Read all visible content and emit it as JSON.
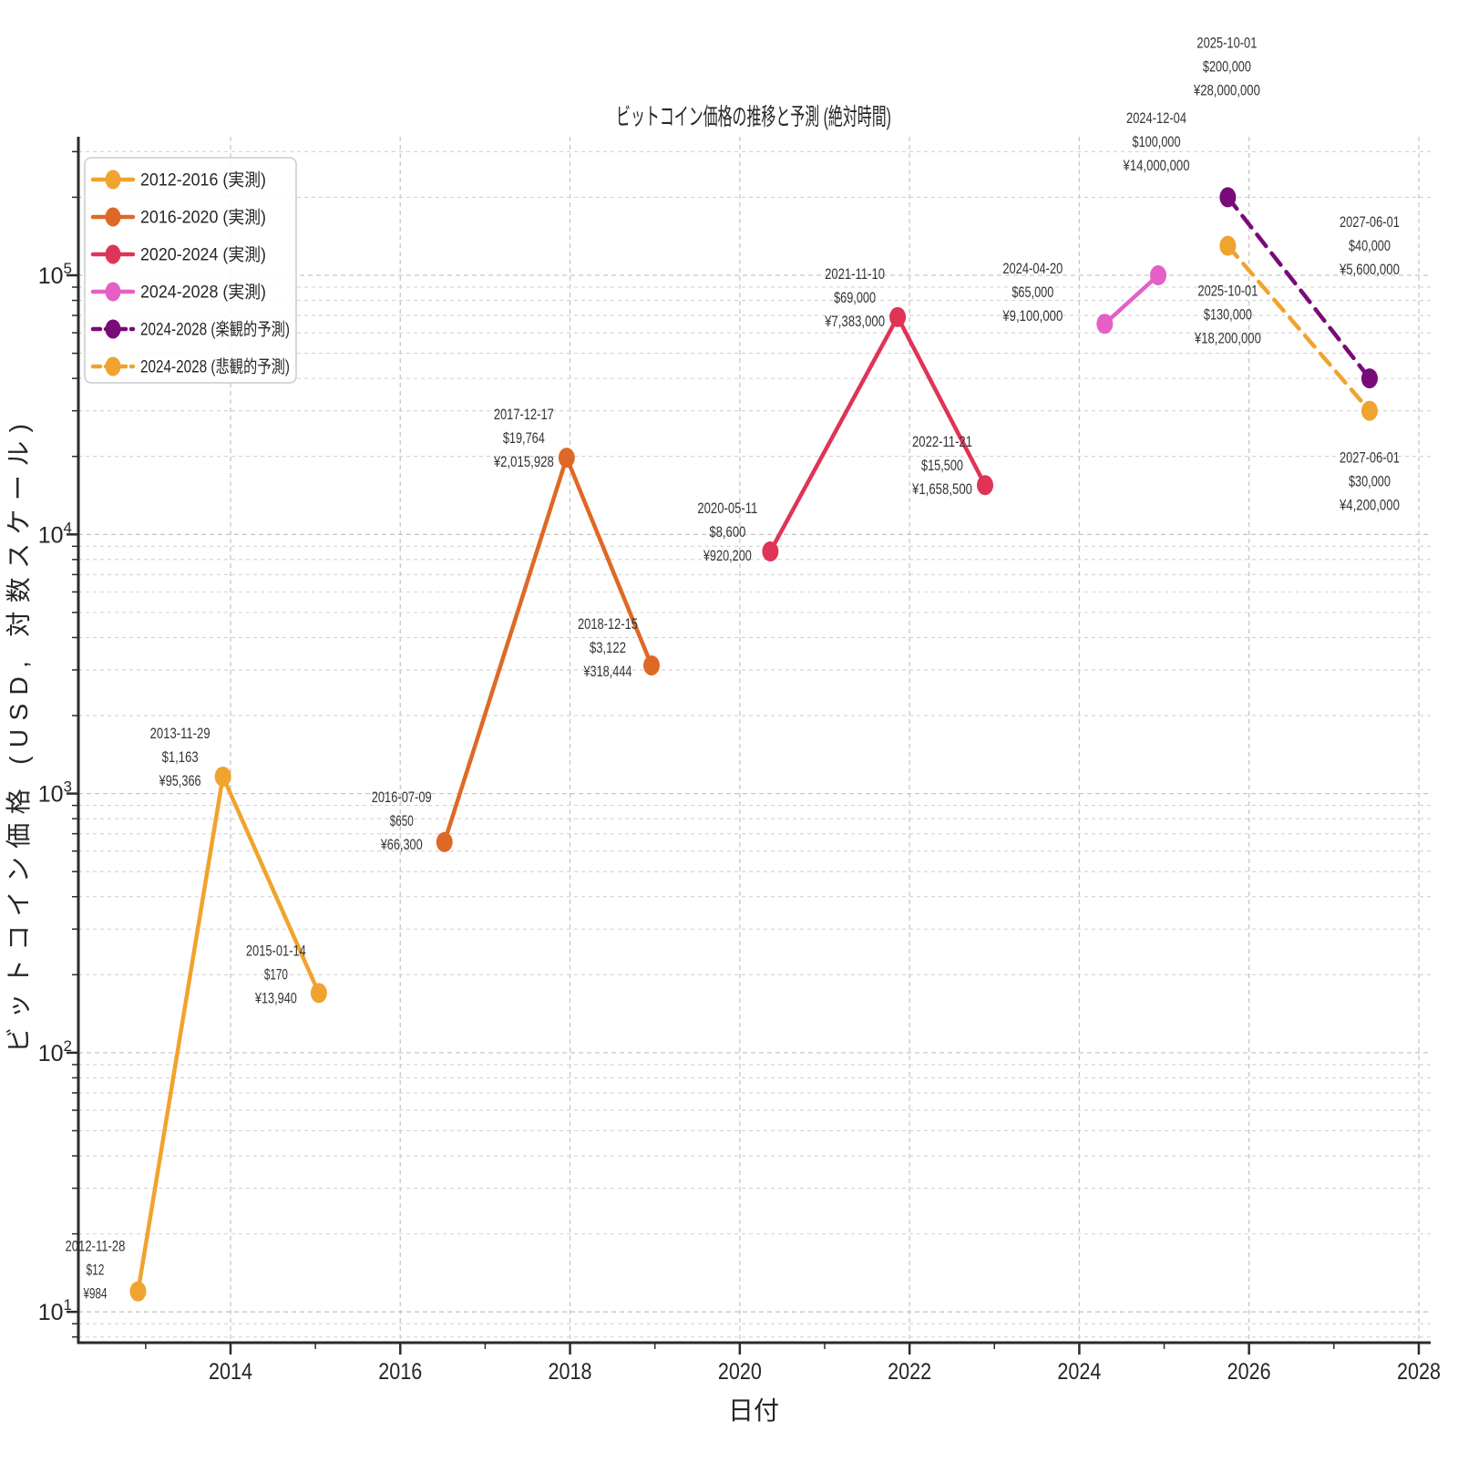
{
  "title": "ビットコイン価格の推移と予測 (絶対時間)",
  "xlabel": "日付",
  "ylabel": "ビットコイン価格 (USD, 対数スケール)",
  "chart_data": {
    "type": "line",
    "log_y": true,
    "grid": "dashed, major and minor, both axes",
    "legend_position": "upper left",
    "xlim_years": [
      2012.2,
      2028.15
    ],
    "ylim_usd": [
      7.6,
      343000
    ],
    "x_ticks": [
      {
        "year": 2014,
        "label": "2014"
      },
      {
        "year": 2016,
        "label": "2016"
      },
      {
        "year": 2018,
        "label": "2018"
      },
      {
        "year": 2020,
        "label": "2020"
      },
      {
        "year": 2022,
        "label": "2022"
      },
      {
        "year": 2024,
        "label": "2024"
      },
      {
        "year": 2026,
        "label": "2026"
      },
      {
        "year": 2028,
        "label": "2028"
      }
    ],
    "x_minor_tick_years": [
      2013,
      2015,
      2017,
      2019,
      2021,
      2023,
      2025,
      2027
    ],
    "y_tick_exponents": [
      1,
      2,
      3,
      4,
      5
    ],
    "series": [
      {
        "name": "2012-2016 (実測)",
        "slug": "series-2012-2016-actual",
        "color": "#F0A32E",
        "dash": false,
        "points": [
          {
            "date": "2012-11-28",
            "x": 2012.91,
            "usd": 12,
            "usd_label": "$12",
            "jpy_label": "¥984",
            "ann_dx": -47,
            "ann_dy": -24
          },
          {
            "date": "2013-11-29",
            "x": 2013.91,
            "usd": 1163,
            "usd_label": "$1,163",
            "jpy_label": "¥95,366",
            "ann_dx": -47,
            "ann_dy": -22
          },
          {
            "date": "2015-01-14",
            "x": 2015.04,
            "usd": 170,
            "usd_label": "$170",
            "jpy_label": "¥13,940",
            "ann_dx": -47,
            "ann_dy": -21
          }
        ]
      },
      {
        "name": "2016-2020 (実測)",
        "slug": "series-2016-2020-actual",
        "color": "#DE6926",
        "dash": false,
        "points": [
          {
            "date": "2016-07-09",
            "x": 2016.52,
            "usd": 650,
            "usd_label": "$650",
            "jpy_label": "¥66,300",
            "ann_dx": -47,
            "ann_dy": -24
          },
          {
            "date": "2017-12-17",
            "x": 2017.96,
            "usd": 19764,
            "usd_label": "$19,764",
            "jpy_label": "¥2,015,928",
            "ann_dx": -47,
            "ann_dy": -22
          },
          {
            "date": "2018-12-15",
            "x": 2018.96,
            "usd": 3122,
            "usd_label": "$3,122",
            "jpy_label": "¥318,444",
            "ann_dx": -48,
            "ann_dy": -20
          }
        ]
      },
      {
        "name": "2020-2024 (実測)",
        "slug": "series-2020-2024-actual",
        "color": "#DF3457",
        "dash": false,
        "points": [
          {
            "date": "2020-05-11",
            "x": 2020.36,
            "usd": 8600,
            "usd_label": "$8,600",
            "jpy_label": "¥920,200",
            "ann_dx": -47,
            "ann_dy": -22
          },
          {
            "date": "2021-11-10",
            "x": 2021.86,
            "usd": 69000,
            "usd_label": "$69,000",
            "jpy_label": "¥7,383,000",
            "ann_dx": -47,
            "ann_dy": -22
          },
          {
            "date": "2022-11-21",
            "x": 2022.89,
            "usd": 15500,
            "usd_label": "$15,500",
            "jpy_label": "¥1,658,500",
            "ann_dx": -47,
            "ann_dy": -22
          }
        ]
      },
      {
        "name": "2024-2028 (実測)",
        "slug": "series-2024-2028-actual",
        "color": "#E45FC6",
        "dash": false,
        "points": [
          {
            "date": "2024-04-20",
            "x": 2024.3,
            "usd": 65000,
            "usd_label": "$65,000",
            "jpy_label": "¥9,100,000",
            "ann_dx": -79,
            "ann_dy": -35
          },
          {
            "date": "2024-12-04",
            "x": 2024.93,
            "usd": 100000,
            "usd_label": "$100,000",
            "jpy_label": "¥14,000,000",
            "ann_dx": -2,
            "ann_dy": -147
          }
        ]
      },
      {
        "name": "2024-2028 (楽観的予測)",
        "slug": "series-2024-2028-optimistic-forecast",
        "color": "#770B77",
        "dash": true,
        "points": [
          {
            "date": "2025-10-01",
            "x": 2025.75,
            "usd": 200000,
            "usd_label": "$200,000",
            "jpy_label": "¥28,000,000",
            "ann_dx": -1,
            "ann_dy": -144
          },
          {
            "date": "2027-06-01",
            "x": 2027.42,
            "usd": 40000,
            "usd_label": "$40,000",
            "jpy_label": "¥5,600,000",
            "ann_dx": 0,
            "ann_dy": -146
          }
        ]
      },
      {
        "name": "2024-2028 (悲観的予測)",
        "slug": "series-2024-2028-pessimistic-forecast",
        "color": "#F0A32E",
        "dash": true,
        "points": [
          {
            "date": "2025-10-01",
            "x": 2025.75,
            "usd": 130000,
            "usd_label": "$130,000",
            "jpy_label": "¥18,200,000",
            "ann_dx": 0,
            "ann_dy": 75
          },
          {
            "date": "2027-06-01",
            "x": 2027.42,
            "usd": 30000,
            "usd_label": "$30,000",
            "jpy_label": "¥4,200,000",
            "ann_dx": 0,
            "ann_dy": 77
          }
        ]
      }
    ]
  },
  "colors": {
    "background": "#ffffff",
    "grid_major": "#c7c7c7",
    "grid_minor": "#d2d2d2",
    "spine": "#2b2b2b",
    "text": "#262626",
    "annotation_text": "#333333",
    "legend_border": "#cccccc"
  }
}
